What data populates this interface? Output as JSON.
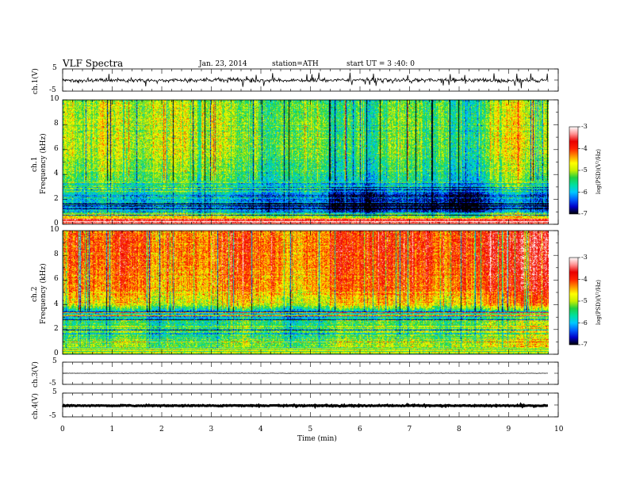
{
  "header": {
    "title": "VLF  Spectra",
    "date": "Jan. 23, 2014",
    "station": "station=ATH",
    "start": "start  UT  =   3  :40: 0"
  },
  "colors": {
    "colormap": [
      "#000000",
      "#0000c8",
      "#0060ff",
      "#00c8ff",
      "#00e0a0",
      "#20d040",
      "#c8f000",
      "#ffff00",
      "#ff9000",
      "#ff2000",
      "#e80000",
      "#ff9090",
      "#ffffff"
    ],
    "trace": "#000000"
  },
  "chart_data": [
    {
      "type": "line",
      "panel": "ch1",
      "ylabel": "ch.1(V)",
      "ylim": [
        -5,
        5
      ],
      "yticks": [
        "5",
        "-5"
      ],
      "xlim": [
        0,
        10
      ],
      "description_series": [
        {
          "x": [
            0,
            1,
            2,
            3,
            4,
            5,
            6,
            7,
            8,
            9,
            9.8
          ],
          "y": [
            -0.3,
            -0.1,
            -0.2,
            0.0,
            -0.2,
            -0.1,
            0.0,
            -0.2,
            -0.1,
            -0.2,
            -0.1
          ]
        }
      ]
    },
    {
      "type": "heatmap",
      "panel": "ch1-spectrogram",
      "ylabel": "Frequency  (kHz)",
      "channel_label": "ch.1",
      "ylim": [
        0,
        10
      ],
      "yticks": [
        "0",
        "2",
        "4",
        "6",
        "8",
        "10"
      ],
      "xlim": [
        0,
        10
      ],
      "data_end": 9.8,
      "colorbar": {
        "label": "log(PSD)(V²/Hz)",
        "range": [
          -7,
          -3
        ],
        "ticks": [
          "-3",
          "-4",
          "-5",
          "-6",
          "-7"
        ]
      },
      "profile": [
        {
          "f": 0.3,
          "log_psd": -3.4
        },
        {
          "f": 1.0,
          "log_psd": -6.3
        },
        {
          "f": 2.0,
          "log_psd": -6.0
        },
        {
          "f": 3.0,
          "log_psd": -5.6
        },
        {
          "f": 4.0,
          "log_psd": -5.3
        },
        {
          "f": 6.0,
          "log_psd": -5.0
        },
        {
          "f": 8.0,
          "log_psd": -5.0
        },
        {
          "f": 10.0,
          "log_psd": -5.1
        }
      ]
    },
    {
      "type": "heatmap",
      "panel": "ch2-spectrogram",
      "ylabel": "Frequency  (kHz)",
      "channel_label": "ch.2",
      "ylim": [
        0,
        10
      ],
      "yticks": [
        "0",
        "2",
        "4",
        "6",
        "8",
        "10"
      ],
      "xlim": [
        0,
        10
      ],
      "data_end": 9.8,
      "colorbar": {
        "label": "log(PSD)(V²/Hz)",
        "range": [
          -7,
          -3
        ],
        "ticks": [
          "-3",
          "-4",
          "-5",
          "-6",
          "-7"
        ]
      },
      "profile": [
        {
          "f": 0.5,
          "log_psd": -5.0
        },
        {
          "f": 1.5,
          "log_psd": -5.4
        },
        {
          "f": 2.5,
          "log_psd": -5.3
        },
        {
          "f": 3.5,
          "log_psd": -5.8
        },
        {
          "f": 4.0,
          "log_psd": -4.8
        },
        {
          "f": 5.0,
          "log_psd": -4.3
        },
        {
          "f": 7.0,
          "log_psd": -4.1
        },
        {
          "f": 9.0,
          "log_psd": -4.0
        },
        {
          "f": 10.0,
          "log_psd": -4.1
        }
      ]
    },
    {
      "type": "line",
      "panel": "ch3",
      "ylabel": "ch.3(V)",
      "ylim": [
        -5,
        5
      ],
      "yticks": [
        "5",
        "-5"
      ],
      "xlim": [
        0,
        10
      ],
      "series": [
        {
          "x": [
            0,
            9.8
          ],
          "y": [
            0.0,
            0.0
          ]
        }
      ]
    },
    {
      "type": "line",
      "panel": "ch4",
      "ylabel": "ch.4(V)",
      "ylim": [
        -5,
        5
      ],
      "yticks": [
        "5",
        "-5"
      ],
      "xlim": [
        0,
        10
      ],
      "series": [
        {
          "x": [
            0,
            9.8
          ],
          "y": [
            -0.3,
            -0.3
          ]
        }
      ]
    }
  ],
  "xaxis": {
    "label": "Time  (min)",
    "ticks": [
      "0",
      "1",
      "2",
      "3",
      "4",
      "5",
      "6",
      "7",
      "8",
      "9",
      "10"
    ]
  }
}
